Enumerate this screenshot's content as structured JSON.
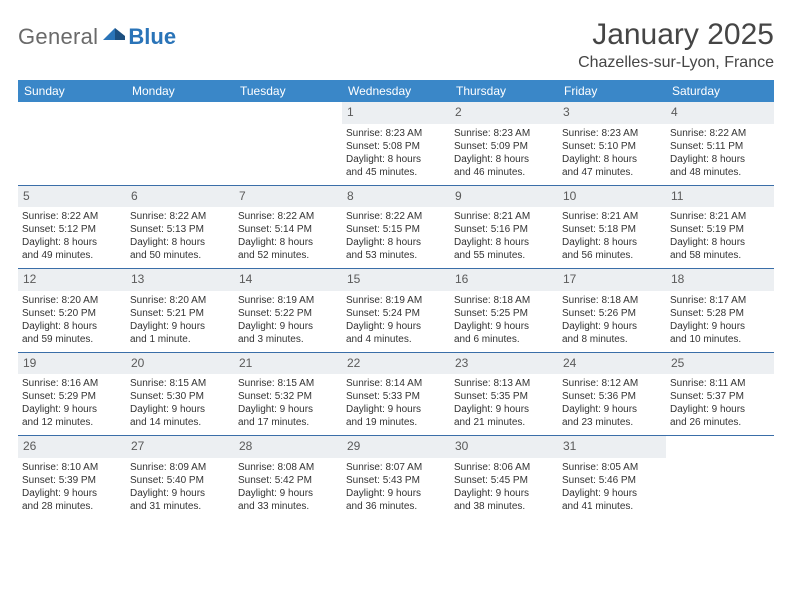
{
  "logo": {
    "general": "General",
    "blue": "Blue"
  },
  "header": {
    "month_title": "January 2025",
    "location": "Chazelles-sur-Lyon, France"
  },
  "colors": {
    "header_bg": "#3a87c8",
    "header_text": "#ffffff",
    "daynum_bg": "#eceff2",
    "daynum_text": "#5a5a5a",
    "row_border": "#3a6ea8",
    "body_text": "#333333",
    "logo_gray": "#6a6a6a",
    "logo_blue": "#2a74b8",
    "title_color": "#454545"
  },
  "typography": {
    "month_title_fontsize": 30,
    "location_fontsize": 16,
    "weekday_fontsize": 12,
    "daynum_fontsize": 12,
    "cell_fontsize": 10
  },
  "calendar": {
    "type": "table",
    "weekdays": [
      "Sunday",
      "Monday",
      "Tuesday",
      "Wednesday",
      "Thursday",
      "Friday",
      "Saturday"
    ],
    "weeks": [
      [
        {
          "day": "",
          "lines": []
        },
        {
          "day": "",
          "lines": []
        },
        {
          "day": "",
          "lines": []
        },
        {
          "day": "1",
          "lines": [
            "Sunrise: 8:23 AM",
            "Sunset: 5:08 PM",
            "Daylight: 8 hours",
            "and 45 minutes."
          ]
        },
        {
          "day": "2",
          "lines": [
            "Sunrise: 8:23 AM",
            "Sunset: 5:09 PM",
            "Daylight: 8 hours",
            "and 46 minutes."
          ]
        },
        {
          "day": "3",
          "lines": [
            "Sunrise: 8:23 AM",
            "Sunset: 5:10 PM",
            "Daylight: 8 hours",
            "and 47 minutes."
          ]
        },
        {
          "day": "4",
          "lines": [
            "Sunrise: 8:22 AM",
            "Sunset: 5:11 PM",
            "Daylight: 8 hours",
            "and 48 minutes."
          ]
        }
      ],
      [
        {
          "day": "5",
          "lines": [
            "Sunrise: 8:22 AM",
            "Sunset: 5:12 PM",
            "Daylight: 8 hours",
            "and 49 minutes."
          ]
        },
        {
          "day": "6",
          "lines": [
            "Sunrise: 8:22 AM",
            "Sunset: 5:13 PM",
            "Daylight: 8 hours",
            "and 50 minutes."
          ]
        },
        {
          "day": "7",
          "lines": [
            "Sunrise: 8:22 AM",
            "Sunset: 5:14 PM",
            "Daylight: 8 hours",
            "and 52 minutes."
          ]
        },
        {
          "day": "8",
          "lines": [
            "Sunrise: 8:22 AM",
            "Sunset: 5:15 PM",
            "Daylight: 8 hours",
            "and 53 minutes."
          ]
        },
        {
          "day": "9",
          "lines": [
            "Sunrise: 8:21 AM",
            "Sunset: 5:16 PM",
            "Daylight: 8 hours",
            "and 55 minutes."
          ]
        },
        {
          "day": "10",
          "lines": [
            "Sunrise: 8:21 AM",
            "Sunset: 5:18 PM",
            "Daylight: 8 hours",
            "and 56 minutes."
          ]
        },
        {
          "day": "11",
          "lines": [
            "Sunrise: 8:21 AM",
            "Sunset: 5:19 PM",
            "Daylight: 8 hours",
            "and 58 minutes."
          ]
        }
      ],
      [
        {
          "day": "12",
          "lines": [
            "Sunrise: 8:20 AM",
            "Sunset: 5:20 PM",
            "Daylight: 8 hours",
            "and 59 minutes."
          ]
        },
        {
          "day": "13",
          "lines": [
            "Sunrise: 8:20 AM",
            "Sunset: 5:21 PM",
            "Daylight: 9 hours",
            "and 1 minute."
          ]
        },
        {
          "day": "14",
          "lines": [
            "Sunrise: 8:19 AM",
            "Sunset: 5:22 PM",
            "Daylight: 9 hours",
            "and 3 minutes."
          ]
        },
        {
          "day": "15",
          "lines": [
            "Sunrise: 8:19 AM",
            "Sunset: 5:24 PM",
            "Daylight: 9 hours",
            "and 4 minutes."
          ]
        },
        {
          "day": "16",
          "lines": [
            "Sunrise: 8:18 AM",
            "Sunset: 5:25 PM",
            "Daylight: 9 hours",
            "and 6 minutes."
          ]
        },
        {
          "day": "17",
          "lines": [
            "Sunrise: 8:18 AM",
            "Sunset: 5:26 PM",
            "Daylight: 9 hours",
            "and 8 minutes."
          ]
        },
        {
          "day": "18",
          "lines": [
            "Sunrise: 8:17 AM",
            "Sunset: 5:28 PM",
            "Daylight: 9 hours",
            "and 10 minutes."
          ]
        }
      ],
      [
        {
          "day": "19",
          "lines": [
            "Sunrise: 8:16 AM",
            "Sunset: 5:29 PM",
            "Daylight: 9 hours",
            "and 12 minutes."
          ]
        },
        {
          "day": "20",
          "lines": [
            "Sunrise: 8:15 AM",
            "Sunset: 5:30 PM",
            "Daylight: 9 hours",
            "and 14 minutes."
          ]
        },
        {
          "day": "21",
          "lines": [
            "Sunrise: 8:15 AM",
            "Sunset: 5:32 PM",
            "Daylight: 9 hours",
            "and 17 minutes."
          ]
        },
        {
          "day": "22",
          "lines": [
            "Sunrise: 8:14 AM",
            "Sunset: 5:33 PM",
            "Daylight: 9 hours",
            "and 19 minutes."
          ]
        },
        {
          "day": "23",
          "lines": [
            "Sunrise: 8:13 AM",
            "Sunset: 5:35 PM",
            "Daylight: 9 hours",
            "and 21 minutes."
          ]
        },
        {
          "day": "24",
          "lines": [
            "Sunrise: 8:12 AM",
            "Sunset: 5:36 PM",
            "Daylight: 9 hours",
            "and 23 minutes."
          ]
        },
        {
          "day": "25",
          "lines": [
            "Sunrise: 8:11 AM",
            "Sunset: 5:37 PM",
            "Daylight: 9 hours",
            "and 26 minutes."
          ]
        }
      ],
      [
        {
          "day": "26",
          "lines": [
            "Sunrise: 8:10 AM",
            "Sunset: 5:39 PM",
            "Daylight: 9 hours",
            "and 28 minutes."
          ]
        },
        {
          "day": "27",
          "lines": [
            "Sunrise: 8:09 AM",
            "Sunset: 5:40 PM",
            "Daylight: 9 hours",
            "and 31 minutes."
          ]
        },
        {
          "day": "28",
          "lines": [
            "Sunrise: 8:08 AM",
            "Sunset: 5:42 PM",
            "Daylight: 9 hours",
            "and 33 minutes."
          ]
        },
        {
          "day": "29",
          "lines": [
            "Sunrise: 8:07 AM",
            "Sunset: 5:43 PM",
            "Daylight: 9 hours",
            "and 36 minutes."
          ]
        },
        {
          "day": "30",
          "lines": [
            "Sunrise: 8:06 AM",
            "Sunset: 5:45 PM",
            "Daylight: 9 hours",
            "and 38 minutes."
          ]
        },
        {
          "day": "31",
          "lines": [
            "Sunrise: 8:05 AM",
            "Sunset: 5:46 PM",
            "Daylight: 9 hours",
            "and 41 minutes."
          ]
        },
        {
          "day": "",
          "lines": []
        }
      ]
    ]
  }
}
